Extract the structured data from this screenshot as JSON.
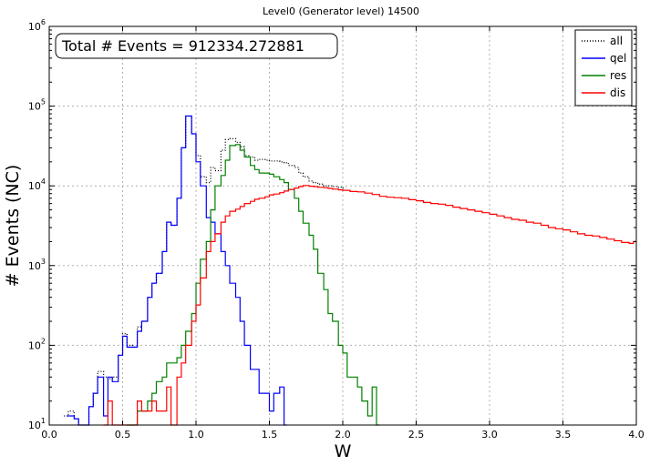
{
  "chart_data": {
    "type": "histogram-step",
    "title": "Level0 (Generator level) 14500",
    "xlabel": "W",
    "ylabel": "# Events (NC)",
    "annotation": "Total # Events = 912334.272881",
    "xlim": [
      0.0,
      4.0
    ],
    "ylim": [
      10,
      1000000
    ],
    "yscale": "log",
    "grid": true,
    "legend_position": "top-right",
    "x_ticks": [
      "0.0",
      "0.5",
      "1.0",
      "1.5",
      "2.0",
      "2.5",
      "3.0",
      "3.5",
      "4.0"
    ],
    "y_ticks": [
      {
        "value": 10,
        "base": "10",
        "exp": "1"
      },
      {
        "value": 100,
        "base": "10",
        "exp": "2"
      },
      {
        "value": 1000,
        "base": "10",
        "exp": "3"
      },
      {
        "value": 10000,
        "base": "10",
        "exp": "4"
      },
      {
        "value": 100000,
        "base": "10",
        "exp": "5"
      },
      {
        "value": 1000000,
        "base": "10",
        "exp": "6"
      }
    ],
    "series": [
      {
        "name": "all",
        "color": "#000000",
        "style": "dotted",
        "points": [
          [
            0.1,
            13
          ],
          [
            0.13,
            15
          ],
          [
            0.17,
            12
          ],
          [
            0.2,
            10
          ],
          [
            0.27,
            17
          ],
          [
            0.3,
            25
          ],
          [
            0.33,
            47
          ],
          [
            0.37,
            40
          ],
          [
            0.4,
            38
          ],
          [
            0.43,
            40
          ],
          [
            0.47,
            75
          ],
          [
            0.5,
            140
          ],
          [
            0.53,
            100
          ],
          [
            0.57,
            95
          ],
          [
            0.6,
            170
          ],
          [
            0.63,
            200
          ],
          [
            0.67,
            400
          ],
          [
            0.7,
            600
          ],
          [
            0.73,
            800
          ],
          [
            0.77,
            1500
          ],
          [
            0.8,
            3500
          ],
          [
            0.83,
            3200
          ],
          [
            0.87,
            7000
          ],
          [
            0.9,
            30000
          ],
          [
            0.93,
            75000
          ],
          [
            0.97,
            45000
          ],
          [
            1.0,
            24000
          ],
          [
            1.03,
            13000
          ],
          [
            1.07,
            11000
          ],
          [
            1.1,
            17000
          ],
          [
            1.13,
            15500
          ],
          [
            1.17,
            28000
          ],
          [
            1.2,
            38000
          ],
          [
            1.23,
            39000
          ],
          [
            1.27,
            35000
          ],
          [
            1.3,
            31000
          ],
          [
            1.33,
            24000
          ],
          [
            1.37,
            23000
          ],
          [
            1.4,
            21000
          ],
          [
            1.43,
            21500
          ],
          [
            1.47,
            21000
          ],
          [
            1.5,
            20500
          ],
          [
            1.53,
            20500
          ],
          [
            1.57,
            20000
          ],
          [
            1.6,
            19500
          ],
          [
            1.63,
            18000
          ],
          [
            1.67,
            17000
          ],
          [
            1.7,
            14500
          ],
          [
            1.73,
            13000
          ],
          [
            1.77,
            11500
          ],
          [
            1.8,
            11000
          ],
          [
            1.83,
            10500
          ],
          [
            1.87,
            10000
          ],
          [
            1.9,
            10000
          ],
          [
            1.93,
            9800
          ],
          [
            1.97,
            9600
          ],
          [
            2.0,
            9400
          ]
        ]
      },
      {
        "name": "qel",
        "color": "#0000ff",
        "style": "solid",
        "points": [
          [
            0.12,
            13
          ],
          [
            0.17,
            12
          ],
          [
            0.2,
            10
          ],
          [
            0.23,
            10
          ],
          [
            0.27,
            17
          ],
          [
            0.3,
            25
          ],
          [
            0.33,
            40
          ],
          [
            0.37,
            13
          ],
          [
            0.4,
            40
          ],
          [
            0.43,
            35
          ],
          [
            0.47,
            75
          ],
          [
            0.5,
            130
          ],
          [
            0.53,
            95
          ],
          [
            0.57,
            95
          ],
          [
            0.6,
            150
          ],
          [
            0.63,
            200
          ],
          [
            0.67,
            400
          ],
          [
            0.7,
            600
          ],
          [
            0.73,
            800
          ],
          [
            0.77,
            1500
          ],
          [
            0.8,
            3500
          ],
          [
            0.83,
            3200
          ],
          [
            0.87,
            7000
          ],
          [
            0.9,
            30000
          ],
          [
            0.93,
            75000
          ],
          [
            0.97,
            45000
          ],
          [
            1.0,
            20000
          ],
          [
            1.03,
            10000
          ],
          [
            1.07,
            4000
          ],
          [
            1.1,
            3500
          ],
          [
            1.13,
            2500
          ],
          [
            1.17,
            1500
          ],
          [
            1.2,
            1000
          ],
          [
            1.23,
            600
          ],
          [
            1.27,
            400
          ],
          [
            1.3,
            200
          ],
          [
            1.33,
            100
          ],
          [
            1.37,
            50
          ],
          [
            1.4,
            50
          ],
          [
            1.43,
            25
          ],
          [
            1.47,
            25
          ],
          [
            1.5,
            15
          ],
          [
            1.53,
            25
          ],
          [
            1.57,
            30
          ],
          [
            1.6,
            10
          ]
        ]
      },
      {
        "name": "res",
        "color": "#008000",
        "style": "solid",
        "points": [
          [
            0.53,
            10
          ],
          [
            0.57,
            10
          ],
          [
            0.6,
            15
          ],
          [
            0.63,
            15
          ],
          [
            0.67,
            20
          ],
          [
            0.7,
            25
          ],
          [
            0.73,
            35
          ],
          [
            0.77,
            40
          ],
          [
            0.8,
            60
          ],
          [
            0.83,
            60
          ],
          [
            0.87,
            70
          ],
          [
            0.9,
            100
          ],
          [
            0.93,
            150
          ],
          [
            0.97,
            250
          ],
          [
            1.0,
            600
          ],
          [
            1.03,
            1200
          ],
          [
            1.07,
            2000
          ],
          [
            1.1,
            5000
          ],
          [
            1.13,
            10000
          ],
          [
            1.17,
            13500
          ],
          [
            1.2,
            21000
          ],
          [
            1.23,
            32000
          ],
          [
            1.27,
            33000
          ],
          [
            1.3,
            28000
          ],
          [
            1.33,
            23000
          ],
          [
            1.37,
            18000
          ],
          [
            1.4,
            16000
          ],
          [
            1.43,
            14500
          ],
          [
            1.47,
            14500
          ],
          [
            1.5,
            14000
          ],
          [
            1.53,
            13000
          ],
          [
            1.57,
            12000
          ],
          [
            1.6,
            11000
          ],
          [
            1.63,
            9000
          ],
          [
            1.67,
            7000
          ],
          [
            1.7,
            4800
          ],
          [
            1.73,
            3400
          ],
          [
            1.77,
            2400
          ],
          [
            1.8,
            1600
          ],
          [
            1.83,
            800
          ],
          [
            1.87,
            500
          ],
          [
            1.9,
            250
          ],
          [
            1.93,
            200
          ],
          [
            1.97,
            100
          ],
          [
            2.0,
            80
          ],
          [
            2.03,
            40
          ],
          [
            2.07,
            40
          ],
          [
            2.1,
            30
          ],
          [
            2.13,
            20
          ],
          [
            2.17,
            13
          ],
          [
            2.2,
            30
          ],
          [
            2.23,
            10
          ]
        ]
      },
      {
        "name": "dis",
        "color": "#ff0000",
        "style": "solid",
        "points": [
          [
            0.37,
            10
          ],
          [
            0.4,
            20
          ],
          [
            0.43,
            10
          ],
          [
            0.47,
            10
          ],
          [
            0.5,
            10
          ],
          [
            0.53,
            10
          ],
          [
            0.57,
            10
          ],
          [
            0.6,
            20
          ],
          [
            0.63,
            15
          ],
          [
            0.67,
            15
          ],
          [
            0.7,
            20
          ],
          [
            0.73,
            15
          ],
          [
            0.77,
            15
          ],
          [
            0.8,
            30
          ],
          [
            0.83,
            10
          ],
          [
            0.87,
            40
          ],
          [
            0.9,
            60
          ],
          [
            0.93,
            100
          ],
          [
            0.97,
            200
          ],
          [
            1.0,
            320
          ],
          [
            1.03,
            700
          ],
          [
            1.07,
            1500
          ],
          [
            1.1,
            2000
          ],
          [
            1.13,
            2500
          ],
          [
            1.17,
            3500
          ],
          [
            1.2,
            4200
          ],
          [
            1.23,
            4800
          ],
          [
            1.27,
            5100
          ],
          [
            1.3,
            5500
          ],
          [
            1.33,
            6000
          ],
          [
            1.37,
            6400
          ],
          [
            1.4,
            6800
          ],
          [
            1.43,
            7000
          ],
          [
            1.47,
            7300
          ],
          [
            1.5,
            7700
          ],
          [
            1.53,
            7900
          ],
          [
            1.57,
            8200
          ],
          [
            1.6,
            8600
          ],
          [
            1.63,
            9000
          ],
          [
            1.67,
            9400
          ],
          [
            1.7,
            9800
          ],
          [
            1.73,
            10100
          ],
          [
            1.77,
            9900
          ],
          [
            1.8,
            9800
          ],
          [
            1.83,
            9600
          ],
          [
            1.87,
            9500
          ],
          [
            1.9,
            9300
          ],
          [
            1.93,
            9100
          ],
          [
            1.97,
            8900
          ],
          [
            2.0,
            8800
          ],
          [
            2.05,
            8500
          ],
          [
            2.1,
            8400
          ],
          [
            2.15,
            8100
          ],
          [
            2.2,
            7800
          ],
          [
            2.25,
            7400
          ],
          [
            2.3,
            7200
          ],
          [
            2.35,
            7100
          ],
          [
            2.4,
            7000
          ],
          [
            2.45,
            6700
          ],
          [
            2.5,
            6500
          ],
          [
            2.55,
            6200
          ],
          [
            2.6,
            6000
          ],
          [
            2.65,
            5900
          ],
          [
            2.7,
            5700
          ],
          [
            2.75,
            5400
          ],
          [
            2.8,
            5200
          ],
          [
            2.85,
            5000
          ],
          [
            2.9,
            4800
          ],
          [
            2.95,
            4600
          ],
          [
            3.0,
            4400
          ],
          [
            3.05,
            4200
          ],
          [
            3.1,
            4000
          ],
          [
            3.15,
            3800
          ],
          [
            3.2,
            3700
          ],
          [
            3.25,
            3500
          ],
          [
            3.3,
            3400
          ],
          [
            3.35,
            3200
          ],
          [
            3.4,
            3000
          ],
          [
            3.45,
            2900
          ],
          [
            3.5,
            2800
          ],
          [
            3.55,
            2650
          ],
          [
            3.6,
            2500
          ],
          [
            3.65,
            2400
          ],
          [
            3.7,
            2350
          ],
          [
            3.75,
            2250
          ],
          [
            3.8,
            2150
          ],
          [
            3.85,
            2050
          ],
          [
            3.9,
            1950
          ],
          [
            3.95,
            1900
          ],
          [
            3.98,
            2000
          ]
        ]
      }
    ]
  }
}
